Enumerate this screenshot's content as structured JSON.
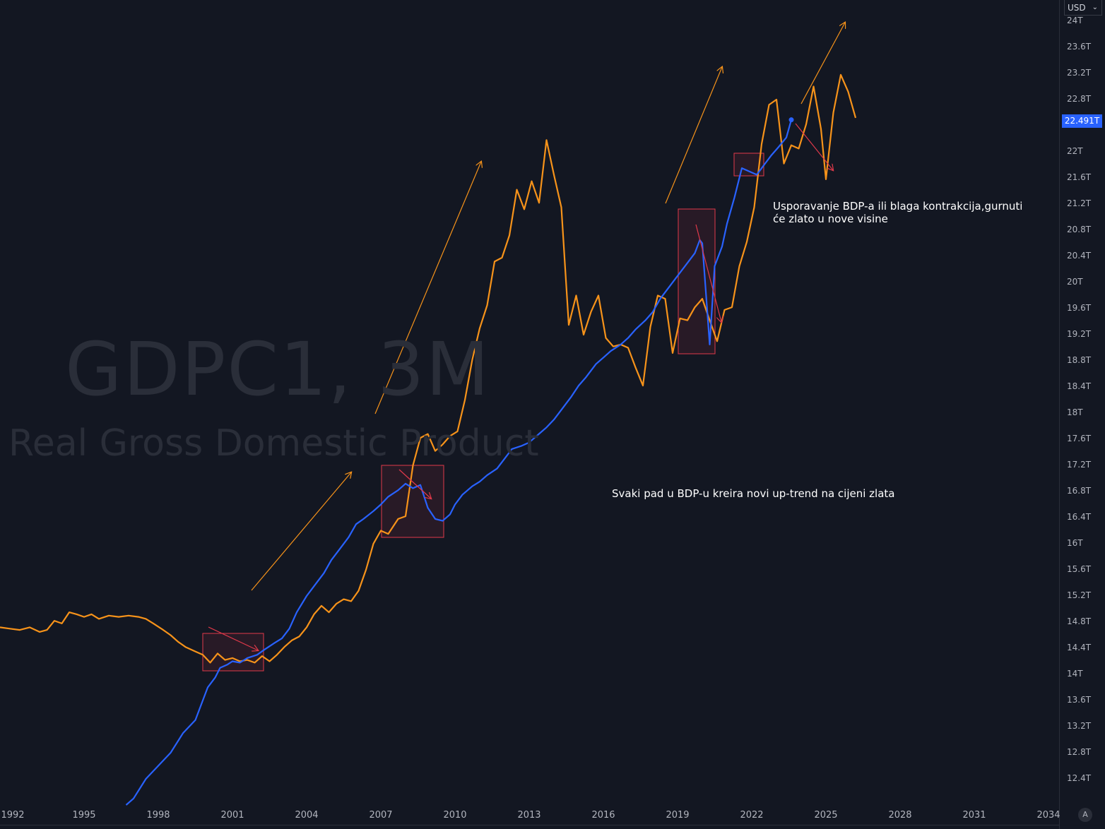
{
  "watermark": {
    "title": "GDPC1, 3M",
    "subtitle": "Real Gross Domestic Product"
  },
  "annotations": {
    "top_right_line1": "Usporavanje BDP-a ili blaga kontrakcija,gurnuti",
    "top_right_line2": "će zlato u nove visine",
    "middle": "Svaki pad u BDP-u kreira novi up-trend na cijeni zlata"
  },
  "currency_selector": "USD",
  "last_value_badge": "22.491T",
  "auto_scale_button": "A",
  "colors": {
    "background": "#131722",
    "gdp_line": "#2962ff",
    "gold_line": "#f7931a",
    "arrow_up": "#f7931a",
    "arrow_down": "#e0394a",
    "box": "#e0394a"
  },
  "chart_data": {
    "type": "line",
    "y_axis_ticks": [
      "24T",
      "23.6T",
      "23.2T",
      "22.8T",
      "22.4T",
      "22T",
      "21.6T",
      "21.2T",
      "20.8T",
      "20.4T",
      "20T",
      "19.6T",
      "19.2T",
      "18.8T",
      "18.4T",
      "18T",
      "17.6T",
      "17.2T",
      "16.8T",
      "16.4T",
      "16T",
      "15.6T",
      "15.2T",
      "14.8T",
      "14.4T",
      "14T",
      "13.6T",
      "13.2T",
      "12.8T",
      "12.4T"
    ],
    "x_axis_ticks": [
      "1992",
      "1995",
      "1998",
      "2001",
      "2004",
      "2007",
      "2010",
      "2013",
      "2016",
      "2019",
      "2022",
      "2025",
      "2028",
      "2031",
      "2034"
    ],
    "ylim": [
      12.2,
      24.0
    ],
    "xlim": [
      1991.6,
      2035.0
    ],
    "series": [
      {
        "name": "GDPC1",
        "color": "#2962ff",
        "points": [
          [
            1996.7,
            12.0
          ],
          [
            1997.0,
            12.1
          ],
          [
            1997.5,
            12.4
          ],
          [
            1998.0,
            12.6
          ],
          [
            1998.5,
            12.8
          ],
          [
            1999.0,
            13.1
          ],
          [
            1999.5,
            13.3
          ],
          [
            1999.8,
            13.6
          ],
          [
            2000.0,
            13.8
          ],
          [
            2000.3,
            13.95
          ],
          [
            2000.5,
            14.1
          ],
          [
            2000.8,
            14.15
          ],
          [
            2001.0,
            14.2
          ],
          [
            2001.3,
            14.18
          ],
          [
            2001.6,
            14.25
          ],
          [
            2002.0,
            14.3
          ],
          [
            2002.3,
            14.38
          ],
          [
            2002.7,
            14.48
          ],
          [
            2003.0,
            14.55
          ],
          [
            2003.3,
            14.7
          ],
          [
            2003.6,
            14.95
          ],
          [
            2004.0,
            15.2
          ],
          [
            2004.3,
            15.35
          ],
          [
            2004.7,
            15.55
          ],
          [
            2005.0,
            15.75
          ],
          [
            2005.3,
            15.9
          ],
          [
            2005.7,
            16.1
          ],
          [
            2006.0,
            16.3
          ],
          [
            2006.3,
            16.38
          ],
          [
            2006.7,
            16.5
          ],
          [
            2007.0,
            16.6
          ],
          [
            2007.3,
            16.72
          ],
          [
            2007.7,
            16.82
          ],
          [
            2008.0,
            16.92
          ],
          [
            2008.3,
            16.85
          ],
          [
            2008.6,
            16.9
          ],
          [
            2008.9,
            16.55
          ],
          [
            2009.2,
            16.38
          ],
          [
            2009.5,
            16.35
          ],
          [
            2009.8,
            16.45
          ],
          [
            2010.0,
            16.6
          ],
          [
            2010.3,
            16.75
          ],
          [
            2010.7,
            16.88
          ],
          [
            2011.0,
            16.95
          ],
          [
            2011.3,
            17.05
          ],
          [
            2011.7,
            17.15
          ],
          [
            2012.0,
            17.3
          ],
          [
            2012.3,
            17.45
          ],
          [
            2012.7,
            17.5
          ],
          [
            2013.0,
            17.55
          ],
          [
            2013.3,
            17.65
          ],
          [
            2013.7,
            17.78
          ],
          [
            2014.0,
            17.9
          ],
          [
            2014.3,
            18.05
          ],
          [
            2014.7,
            18.25
          ],
          [
            2015.0,
            18.42
          ],
          [
            2015.3,
            18.55
          ],
          [
            2015.7,
            18.75
          ],
          [
            2016.0,
            18.85
          ],
          [
            2016.3,
            18.95
          ],
          [
            2016.7,
            19.05
          ],
          [
            2017.0,
            19.15
          ],
          [
            2017.3,
            19.28
          ],
          [
            2017.7,
            19.42
          ],
          [
            2018.0,
            19.55
          ],
          [
            2018.3,
            19.75
          ],
          [
            2018.7,
            19.95
          ],
          [
            2019.0,
            20.1
          ],
          [
            2019.3,
            20.25
          ],
          [
            2019.7,
            20.45
          ],
          [
            2019.9,
            20.65
          ],
          [
            2020.0,
            20.6
          ],
          [
            2020.3,
            19.05
          ],
          [
            2020.5,
            20.25
          ],
          [
            2020.8,
            20.55
          ],
          [
            2021.0,
            20.9
          ],
          [
            2021.3,
            21.3
          ],
          [
            2021.6,
            21.75
          ],
          [
            2021.9,
            21.7
          ],
          [
            2022.2,
            21.65
          ],
          [
            2022.5,
            21.8
          ],
          [
            2022.8,
            21.95
          ],
          [
            2023.1,
            22.08
          ],
          [
            2023.4,
            22.22
          ],
          [
            2023.6,
            22.49
          ]
        ]
      },
      {
        "name": "",
        "color": "#f7931a",
        "points": [
          [
            1991.6,
            14.72
          ],
          [
            1992.0,
            14.7
          ],
          [
            1992.4,
            14.68
          ],
          [
            1992.8,
            14.72
          ],
          [
            1993.2,
            14.65
          ],
          [
            1993.5,
            14.68
          ],
          [
            1993.8,
            14.82
          ],
          [
            1994.1,
            14.78
          ],
          [
            1994.4,
            14.95
          ],
          [
            1994.7,
            14.92
          ],
          [
            1995.0,
            14.88
          ],
          [
            1995.3,
            14.92
          ],
          [
            1995.6,
            14.85
          ],
          [
            1996.0,
            14.9
          ],
          [
            1996.4,
            14.88
          ],
          [
            1996.8,
            14.9
          ],
          [
            1997.2,
            14.88
          ],
          [
            1997.5,
            14.85
          ],
          [
            1997.8,
            14.78
          ],
          [
            1998.2,
            14.68
          ],
          [
            1998.5,
            14.6
          ],
          [
            1998.8,
            14.5
          ],
          [
            1999.1,
            14.42
          ],
          [
            1999.5,
            14.35
          ],
          [
            1999.8,
            14.3
          ],
          [
            2000.1,
            14.18
          ],
          [
            2000.4,
            14.32
          ],
          [
            2000.7,
            14.22
          ],
          [
            2001.0,
            14.25
          ],
          [
            2001.3,
            14.2
          ],
          [
            2001.6,
            14.22
          ],
          [
            2001.9,
            14.18
          ],
          [
            2002.2,
            14.28
          ],
          [
            2002.5,
            14.2
          ],
          [
            2002.8,
            14.3
          ],
          [
            2003.1,
            14.42
          ],
          [
            2003.4,
            14.52
          ],
          [
            2003.7,
            14.58
          ],
          [
            2004.0,
            14.72
          ],
          [
            2004.3,
            14.92
          ],
          [
            2004.6,
            15.05
          ],
          [
            2004.9,
            14.95
          ],
          [
            2005.2,
            15.08
          ],
          [
            2005.5,
            15.15
          ],
          [
            2005.8,
            15.12
          ],
          [
            2006.1,
            15.28
          ],
          [
            2006.4,
            15.6
          ],
          [
            2006.7,
            16.0
          ],
          [
            2007.0,
            16.2
          ],
          [
            2007.3,
            16.15
          ],
          [
            2007.7,
            16.38
          ],
          [
            2008.0,
            16.42
          ],
          [
            2008.3,
            17.2
          ],
          [
            2008.6,
            17.62
          ],
          [
            2008.9,
            17.68
          ],
          [
            2009.2,
            17.42
          ],
          [
            2009.5,
            17.52
          ],
          [
            2009.8,
            17.65
          ],
          [
            2010.1,
            17.72
          ],
          [
            2010.4,
            18.2
          ],
          [
            2010.7,
            18.82
          ],
          [
            2011.0,
            19.3
          ],
          [
            2011.3,
            19.65
          ],
          [
            2011.6,
            20.32
          ],
          [
            2011.9,
            20.38
          ],
          [
            2012.2,
            20.72
          ],
          [
            2012.5,
            21.42
          ],
          [
            2012.8,
            21.12
          ],
          [
            2013.1,
            21.55
          ],
          [
            2013.4,
            21.22
          ],
          [
            2013.7,
            22.18
          ],
          [
            2014.0,
            21.65
          ],
          [
            2014.3,
            21.15
          ],
          [
            2014.6,
            19.35
          ],
          [
            2014.9,
            19.8
          ],
          [
            2015.2,
            19.2
          ],
          [
            2015.5,
            19.55
          ],
          [
            2015.8,
            19.8
          ],
          [
            2016.1,
            19.15
          ],
          [
            2016.4,
            19.02
          ],
          [
            2016.7,
            19.05
          ],
          [
            2017.0,
            19.0
          ],
          [
            2017.3,
            18.7
          ],
          [
            2017.6,
            18.42
          ],
          [
            2017.9,
            19.32
          ],
          [
            2018.2,
            19.8
          ],
          [
            2018.5,
            19.75
          ],
          [
            2018.8,
            18.92
          ],
          [
            2019.1,
            19.45
          ],
          [
            2019.4,
            19.42
          ],
          [
            2019.7,
            19.62
          ],
          [
            2020.0,
            19.75
          ],
          [
            2020.3,
            19.42
          ],
          [
            2020.6,
            19.1
          ],
          [
            2020.9,
            19.58
          ],
          [
            2021.2,
            19.62
          ],
          [
            2021.5,
            20.25
          ],
          [
            2021.8,
            20.62
          ],
          [
            2022.1,
            21.15
          ],
          [
            2022.4,
            22.12
          ],
          [
            2022.7,
            22.72
          ],
          [
            2023.0,
            22.8
          ],
          [
            2023.3,
            21.82
          ],
          [
            2023.6,
            22.1
          ],
          [
            2023.9,
            22.05
          ],
          [
            2024.2,
            22.42
          ],
          [
            2024.5,
            23.0
          ],
          [
            2024.8,
            22.35
          ],
          [
            2025.0,
            21.58
          ],
          [
            2025.3,
            22.6
          ],
          [
            2025.6,
            23.18
          ],
          [
            2025.9,
            22.92
          ],
          [
            2026.2,
            22.52
          ]
        ]
      }
    ],
    "grid": false,
    "legend": "none"
  }
}
